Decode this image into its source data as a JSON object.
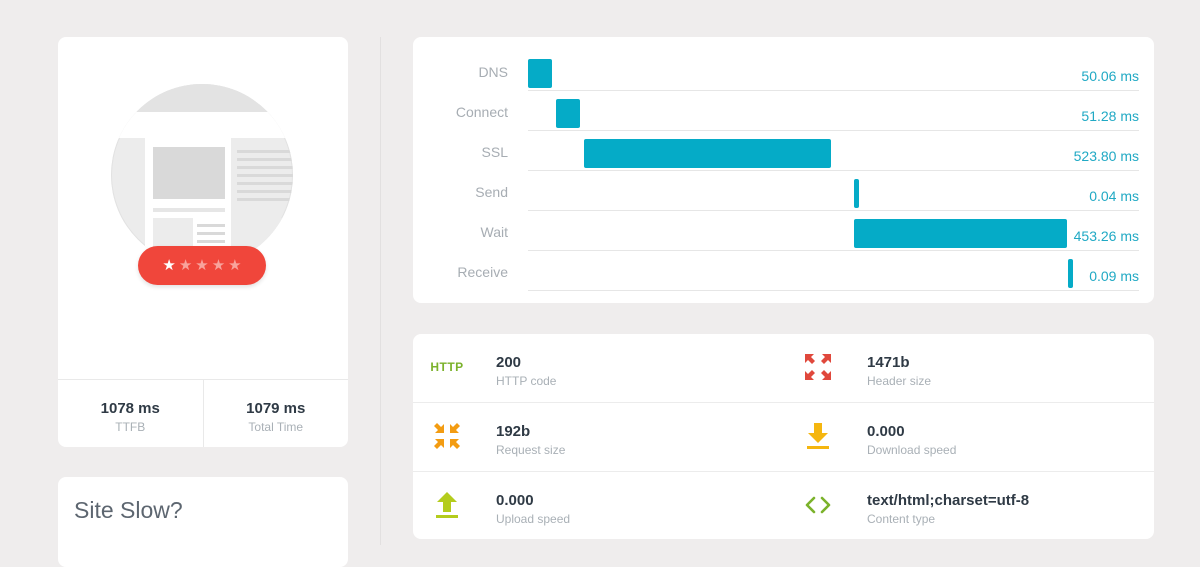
{
  "preview": {
    "rating": {
      "stars_total": 5,
      "stars_filled": 1
    },
    "metrics": [
      {
        "value": "1078 ms",
        "label": "TTFB"
      },
      {
        "value": "1079 ms",
        "label": "Total Time"
      }
    ]
  },
  "site_slow": {
    "title": "Site Slow?"
  },
  "timing": {
    "rows": [
      {
        "label": "DNS",
        "value": "50.06 ms",
        "start_ms": 0,
        "duration_ms": 50.06
      },
      {
        "label": "Connect",
        "value": "51.28 ms",
        "start_ms": 60,
        "duration_ms": 51.28
      },
      {
        "label": "SSL",
        "value": "523.80 ms",
        "start_ms": 120,
        "duration_ms": 523.8
      },
      {
        "label": "Send",
        "value": "0.04 ms",
        "start_ms": 694,
        "duration_ms": 0.04
      },
      {
        "label": "Wait",
        "value": "453.26 ms",
        "start_ms": 694,
        "duration_ms": 453.26
      },
      {
        "label": "Receive",
        "value": "0.09 ms",
        "start_ms": 1148,
        "duration_ms": 0.09
      }
    ],
    "scale_max_ms": 1300
  },
  "info": {
    "http": {
      "badge": "HTTP",
      "value": "200",
      "label": "HTTP code"
    },
    "header_size": {
      "value": "1471b",
      "label": "Header size",
      "icon": "expand-arrows-icon",
      "color": "#e0483c"
    },
    "request_size": {
      "value": "192b",
      "label": "Request size",
      "icon": "expand-arrows-icon",
      "color": "#f39c12"
    },
    "download_speed": {
      "value": "0.000",
      "label": "Download speed",
      "icon": "download-icon",
      "color": "#f5b60f"
    },
    "upload_speed": {
      "value": "0.000",
      "label": "Upload speed",
      "icon": "upload-icon",
      "color": "#b4cc1d"
    },
    "content_type": {
      "value": "text/html;charset=utf-8",
      "label": "Content type",
      "icon": "code-brackets-icon",
      "color": "#7bb22b"
    }
  },
  "colors": {
    "bar": "#05abc7",
    "rating": "#f0463b",
    "value_text": "#20a9c4"
  }
}
